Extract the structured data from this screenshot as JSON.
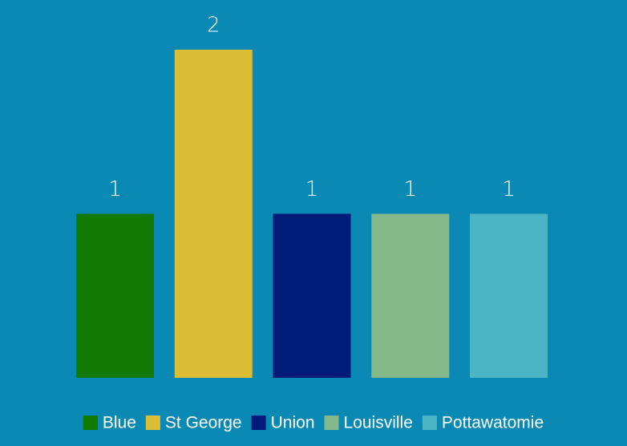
{
  "chart_data": {
    "type": "bar",
    "categories": [
      "Blue",
      "St George",
      "Union",
      "Louisville",
      "Pottawatomie"
    ],
    "values": [
      1,
      2,
      1,
      1,
      1
    ],
    "colors": [
      "#127a00",
      "#dbbd36",
      "#001b78",
      "#84b888",
      "#4bb5c5"
    ],
    "ylim": [
      0,
      2
    ],
    "legend": "bottom"
  }
}
